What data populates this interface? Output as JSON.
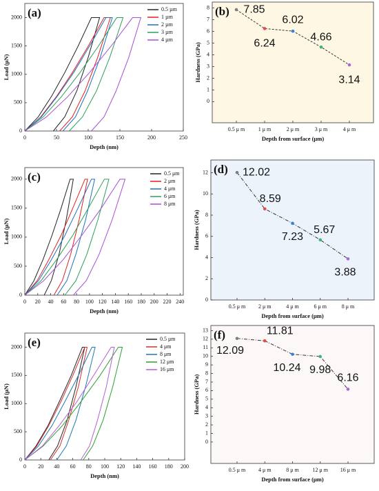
{
  "chart_data": [
    {
      "type": "line",
      "label": "(a)",
      "xlabel": "Depth (nm)",
      "ylabel": "Load (μN)",
      "xlim": [
        0,
        250
      ],
      "ylim": [
        0,
        2250
      ],
      "xticks": [
        0,
        50,
        100,
        150,
        200,
        250
      ],
      "yticks": [
        0,
        500,
        1000,
        1500,
        2000
      ],
      "legend": "upper right",
      "series": [
        {
          "name": "0.5 µm",
          "color": "#222222",
          "x": [
            0,
            21,
            42,
            63,
            84,
            105,
            118,
            100,
            82,
            63,
            45
          ],
          "values": [
            0,
            247,
            609,
            1030,
            1496,
            2000,
            2000,
            1299,
            707,
            250,
            0
          ]
        },
        {
          "name": "1 µm",
          "color": "#e02020",
          "x": [
            0,
            25,
            50,
            75,
            100,
            125,
            135,
            115,
            95,
            75,
            55
          ],
          "values": [
            0,
            247,
            609,
            1030,
            1496,
            2000,
            2000,
            1299,
            707,
            250,
            0
          ]
        },
        {
          "name": "2 µm",
          "color": "#1f6fc0",
          "x": [
            0,
            26,
            51,
            77,
            102,
            128,
            138,
            119,
            99,
            80,
            60
          ],
          "values": [
            0,
            247,
            609,
            1030,
            1496,
            2000,
            2000,
            1299,
            707,
            250,
            0
          ]
        },
        {
          "name": "3 µm",
          "color": "#2aa05a",
          "x": [
            0,
            29,
            58,
            87,
            116,
            145,
            155,
            134,
            113,
            91,
            70
          ],
          "values": [
            0,
            247,
            609,
            1030,
            1496,
            2000,
            2000,
            1299,
            707,
            250,
            0
          ]
        },
        {
          "name": "4 µm",
          "color": "#a64fd6",
          "x": [
            0,
            34,
            68,
            102,
            136,
            170,
            183,
            164,
            144,
            125,
            105
          ],
          "values": [
            0,
            247,
            609,
            1030,
            1496,
            2000,
            2000,
            1299,
            707,
            250,
            0
          ]
        }
      ]
    },
    {
      "type": "line",
      "label": "(b)",
      "xlabel": "Depth from surface (μm)",
      "ylabel": "Hardness (GPa)",
      "ylim": [
        -1.8,
        8.5
      ],
      "yticks": [
        0,
        1,
        2,
        3,
        4,
        5,
        6,
        7,
        8
      ],
      "background": "#fdf7e3",
      "line_style": "dashed",
      "line_color": "#333333",
      "categories": [
        "0.5 μ m",
        "1 μ m",
        "2 μ m",
        "3 μ m",
        "4 μ m"
      ],
      "values": [
        7.85,
        6.24,
        6.02,
        4.66,
        3.14
      ],
      "colors": [
        "#7f7f7f",
        "#e04b4b",
        "#3c7fd6",
        "#3fb37a",
        "#a56ad6"
      ]
    },
    {
      "type": "line",
      "label": "(c)",
      "xlabel": "Depth (nm)",
      "ylabel": "Load (μN)",
      "xlim": [
        0,
        245
      ],
      "ylim": [
        0,
        2200
      ],
      "xticks": [
        0,
        20,
        40,
        60,
        80,
        100,
        120,
        140,
        160,
        180,
        200,
        220,
        240
      ],
      "yticks": [
        0,
        500,
        1000,
        1500,
        2000
      ],
      "legend": "upper right",
      "series": [
        {
          "name": "0.5 μm",
          "color": "#222222",
          "x": [
            0,
            14,
            28,
            42,
            56,
            70,
            75,
            64,
            53,
            41,
            30
          ],
          "values": [
            0,
            247,
            609,
            1030,
            1496,
            2000,
            2000,
            1299,
            707,
            250,
            0
          ]
        },
        {
          "name": "2 μm",
          "color": "#e02020",
          "x": [
            0,
            19,
            37,
            56,
            74,
            93,
            97,
            84,
            71,
            58,
            45
          ],
          "values": [
            0,
            247,
            609,
            1030,
            1496,
            2000,
            2000,
            1299,
            707,
            250,
            0
          ]
        },
        {
          "name": "4 μm",
          "color": "#1f6fc0",
          "x": [
            0,
            21,
            41,
            62,
            82,
            103,
            108,
            94,
            79,
            65,
            50
          ],
          "values": [
            0,
            247,
            609,
            1030,
            1496,
            2000,
            2000,
            1299,
            707,
            250,
            0
          ]
        },
        {
          "name": "6 μm",
          "color": "#2aa05a",
          "x": [
            0,
            25,
            49,
            74,
            98,
            123,
            130,
            113,
            96,
            79,
            62
          ],
          "values": [
            0,
            247,
            609,
            1030,
            1496,
            2000,
            2000,
            1299,
            707,
            250,
            0
          ]
        },
        {
          "name": "8 μm",
          "color": "#a64fd6",
          "x": [
            0,
            29,
            59,
            88,
            118,
            147,
            155,
            135,
            115,
            95,
            75
          ],
          "values": [
            0,
            247,
            609,
            1030,
            1496,
            2000,
            2000,
            1299,
            707,
            250,
            0
          ]
        }
      ]
    },
    {
      "type": "line",
      "label": "(d)",
      "xlabel": "Depth from surface (μm)",
      "ylabel": "Hardness (GPa)",
      "ylim": [
        0,
        13.2
      ],
      "yticks": [
        0,
        2,
        4,
        6,
        8,
        10,
        12
      ],
      "background": "#edf3fb",
      "line_style": "dashdot",
      "line_color": "#333333",
      "categories": [
        "0.5 μ m",
        "2 μ m",
        "4 μ m",
        "6 μ m",
        "8 μ m"
      ],
      "values": [
        12.02,
        8.59,
        7.23,
        5.67,
        3.88
      ],
      "colors": [
        "#7f7f7f",
        "#e04b4b",
        "#3c7fd6",
        "#3fb37a",
        "#a56ad6"
      ]
    },
    {
      "type": "line",
      "label": "(e)",
      "xlabel": "Depth (nm)",
      "ylabel": "Load (μN)",
      "xlim": [
        0,
        200
      ],
      "ylim": [
        0,
        2250
      ],
      "xticks": [
        0,
        20,
        40,
        60,
        80,
        100,
        120,
        140,
        160,
        180,
        200
      ],
      "yticks": [
        0,
        500,
        1000,
        1500,
        2000
      ],
      "legend": "upper right",
      "series": [
        {
          "name": "0.5 μm",
          "color": "#222222",
          "x": [
            0,
            14,
            29,
            43,
            58,
            72,
            75,
            64,
            53,
            41,
            30
          ],
          "values": [
            0,
            247,
            609,
            1030,
            1496,
            2000,
            2000,
            1299,
            707,
            250,
            0
          ]
        },
        {
          "name": "4 μm",
          "color": "#d62d2d",
          "x": [
            0,
            15,
            30,
            45,
            60,
            75,
            78,
            67,
            55,
            44,
            32
          ],
          "values": [
            0,
            247,
            609,
            1030,
            1496,
            2000,
            2000,
            1299,
            707,
            250,
            0
          ]
        },
        {
          "name": "8 μm",
          "color": "#1f77b4",
          "x": [
            0,
            17,
            34,
            50,
            67,
            84,
            88,
            76,
            64,
            52,
            40
          ],
          "values": [
            0,
            247,
            609,
            1030,
            1496,
            2000,
            2000,
            1299,
            707,
            250,
            0
          ]
        },
        {
          "name": "12 μm",
          "color": "#2ca02c",
          "x": [
            0,
            23,
            47,
            70,
            94,
            117,
            122,
            110,
            98,
            85,
            73
          ],
          "values": [
            0,
            247,
            609,
            1030,
            1496,
            2000,
            2000,
            1299,
            707,
            250,
            0
          ]
        },
        {
          "name": "16 μm",
          "color": "#b45fd6",
          "x": [
            0,
            22,
            43,
            65,
            86,
            108,
            112,
            102,
            91,
            81,
            70
          ],
          "values": [
            0,
            247,
            609,
            1030,
            1496,
            2000,
            2000,
            1299,
            707,
            250,
            0
          ]
        }
      ]
    },
    {
      "type": "line",
      "label": "(f)",
      "xlabel": "Depth from surface (μm)",
      "ylabel": "Hardness (GPa)",
      "ylim": [
        -2.5,
        13.6
      ],
      "yticks": [
        0,
        1,
        2,
        3,
        4,
        5,
        6,
        7,
        8,
        9,
        10,
        11,
        12,
        13
      ],
      "background": "#fdf8f8",
      "line_style": "dashdot",
      "line_color": "#333333",
      "categories": [
        "0.5 μ m",
        "4 μ m",
        "8 μ m",
        "12 μ m",
        "16 μ m"
      ],
      "values": [
        12.09,
        11.81,
        10.24,
        9.98,
        6.16
      ],
      "colors": [
        "#7f7f7f",
        "#e04b4b",
        "#3c7fd6",
        "#3fb37a",
        "#a56ad6"
      ]
    }
  ]
}
